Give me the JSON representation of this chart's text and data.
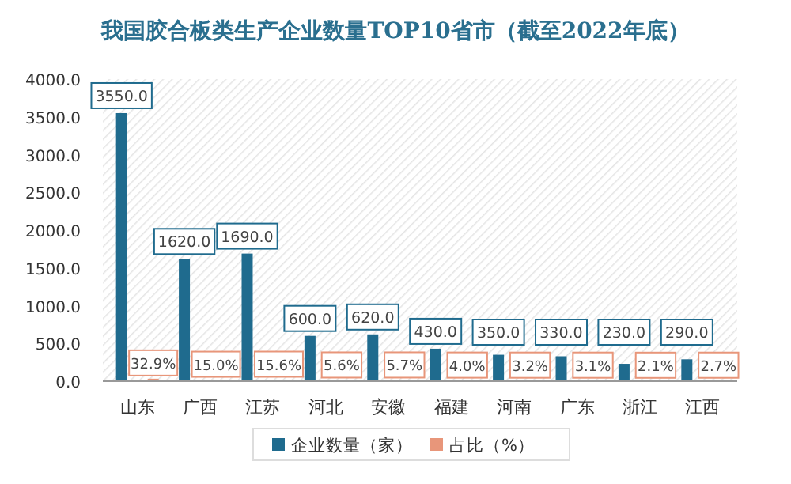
{
  "chart_data": {
    "type": "bar",
    "title": "我国胶合板类生产企业数量TOP10省市（截至2022年底）",
    "categories": [
      "山东",
      "广西",
      "江苏",
      "河北",
      "安徽",
      "福建",
      "河南",
      "广东",
      "浙江",
      "江西"
    ],
    "series": [
      {
        "name": "企业数量（家）",
        "color": "#1f6b8e",
        "values": [
          3550,
          1620,
          1690,
          600,
          620,
          430,
          350,
          330,
          230,
          290
        ],
        "value_labels": [
          "3550.0",
          "1620.0",
          "1690.0",
          "600.0",
          "620.0",
          "430.0",
          "350.0",
          "330.0",
          "230.0",
          "290.0"
        ]
      },
      {
        "name": "占比（%）",
        "color": "#e8967a",
        "values": [
          32.9,
          15.0,
          15.6,
          5.6,
          5.7,
          4.0,
          3.2,
          3.1,
          2.1,
          2.7
        ],
        "value_labels": [
          "32.9%",
          "15.0%",
          "15.6%",
          "5.6%",
          "5.7%",
          "4.0%",
          "3.2%",
          "3.1%",
          "2.1%",
          "2.7%"
        ]
      }
    ],
    "ylim": [
      0,
      4000
    ],
    "yticks": [
      {
        "value": 0,
        "label": "0.0"
      },
      {
        "value": 500,
        "label": "500.0"
      },
      {
        "value": 1000,
        "label": "1000.0"
      },
      {
        "value": 1500,
        "label": "1500.0"
      },
      {
        "value": 2000,
        "label": "2000.0"
      },
      {
        "value": 2500,
        "label": "2500.0"
      },
      {
        "value": 3000,
        "label": "3000.0"
      },
      {
        "value": 3500,
        "label": "3500.0"
      },
      {
        "value": 4000,
        "label": "4000.0"
      }
    ],
    "legend": "bottom"
  }
}
